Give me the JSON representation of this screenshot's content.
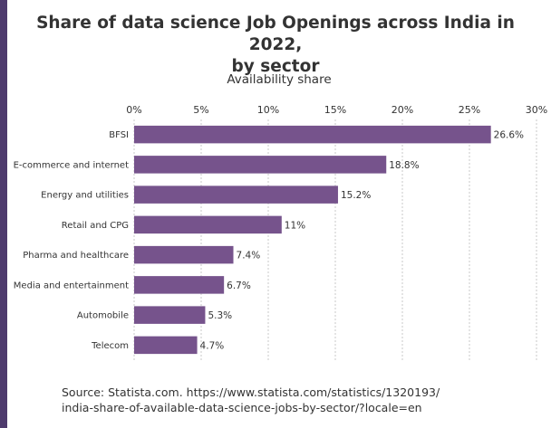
{
  "chart_data": {
    "type": "bar",
    "orientation": "horizontal",
    "title_line1": "Share of data science Job Openings across India in 2022,",
    "title_line2": "by sector",
    "xlabel": "Availability share",
    "ylabel": "",
    "xlim": [
      0,
      30
    ],
    "xticks": [
      "0%",
      "5%",
      "10%",
      "15%",
      "20%",
      "25%",
      "30%"
    ],
    "categories": [
      "BFSI",
      "E-commerce and internet",
      "Energy and utilities",
      "Retail and CPG",
      "Pharma and healthcare",
      "Media and entertainment",
      "Automobile",
      "Telecom"
    ],
    "values": [
      26.6,
      18.8,
      15.2,
      11,
      7.4,
      6.7,
      5.3,
      4.7
    ],
    "value_labels": [
      "26.6%",
      "18.8%",
      "15.2%",
      "11%",
      "7.4%",
      "6.7%",
      "5.3%",
      "4.7%"
    ],
    "bar_color": "#76538c",
    "grid": "vertical-dashed",
    "legend": "none"
  },
  "source_line1": "Source: Statista.com. https://www.statista.com/statistics/1320193/",
  "source_line2": "india-share-of-available-data-science-jobs-by-sector/?locale=en",
  "colors": {
    "band": "#4e3b6d",
    "text": "#333333"
  }
}
